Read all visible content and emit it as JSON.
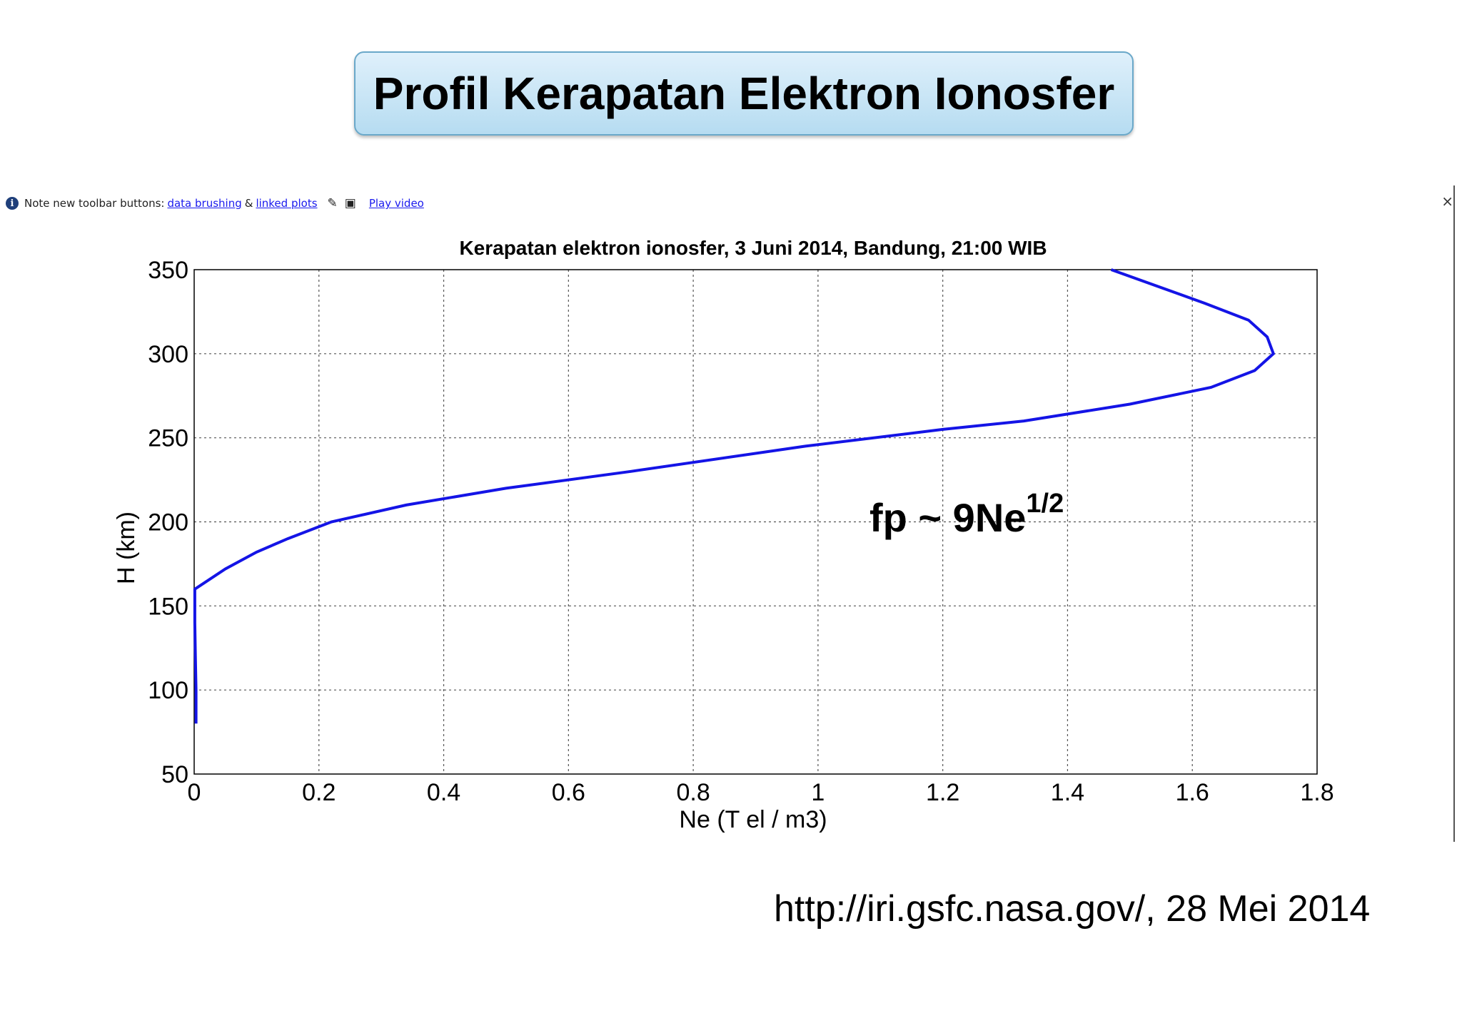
{
  "slide": {
    "title": "Profil Kerapatan Elektron Ionosfer",
    "source": "http://iri.gsfc.nasa.gov/, 28 Mei 2014"
  },
  "notice": {
    "prefix": "Note new toolbar buttons:",
    "link1": "data brushing",
    "amp": "&",
    "link2": "linked plots",
    "video": "Play video",
    "close": "×",
    "icons": [
      "info-icon",
      "brush-icon",
      "linked-plots-icon"
    ]
  },
  "annotation": {
    "base": "fp ~ 9Ne",
    "exponent": "1/2"
  },
  "chart_data": {
    "type": "line",
    "title": "Kerapatan elektron ionosfer, 3 Juni 2014, Bandung, 21:00 WIB",
    "xlabel": "Ne (T el / m3)",
    "ylabel": "H (km)",
    "xlim": [
      0,
      1.8
    ],
    "ylim": [
      50,
      350
    ],
    "xticks": [
      "0",
      "0.2",
      "0.4",
      "0.6",
      "0.8",
      "1",
      "1.2",
      "1.4",
      "1.6",
      "1.8"
    ],
    "yticks": [
      "50",
      "100",
      "150",
      "200",
      "250",
      "300",
      "350"
    ],
    "xtick_values": [
      0,
      0.2,
      0.4,
      0.6,
      0.8,
      1.0,
      1.2,
      1.4,
      1.6,
      1.8
    ],
    "ytick_values": [
      50,
      100,
      150,
      200,
      250,
      300,
      350
    ],
    "grid": true,
    "line_color": "#1414e6",
    "series": [
      {
        "x": [
          0.003,
          0.003,
          0.002,
          0.001,
          0.001,
          0.05,
          0.1,
          0.15,
          0.22,
          0.34,
          0.5,
          0.7,
          0.98,
          1.2,
          1.33,
          1.5,
          1.63,
          1.7,
          1.73,
          1.72,
          1.69,
          1.62,
          1.47
        ],
        "y": [
          80,
          100,
          120,
          140,
          160,
          172,
          182,
          190,
          200,
          210,
          220,
          230,
          245,
          255,
          260,
          270,
          280,
          290,
          300,
          310,
          320,
          330,
          350
        ]
      }
    ]
  }
}
